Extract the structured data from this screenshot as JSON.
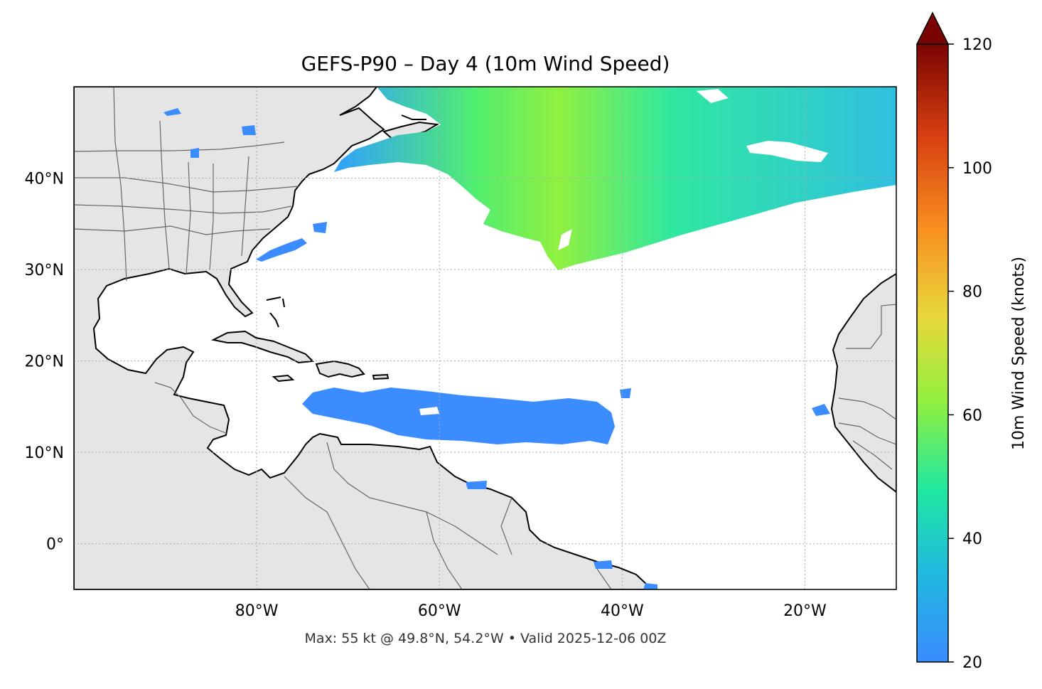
{
  "title": "GEFS-P90 – Day 4 (10m Wind Speed)",
  "footer": "Max: 55 kt @ 49.8°N, 54.2°W • Valid 2025-12-06 00Z",
  "map": {
    "lon_range": [
      -100,
      -10
    ],
    "lat_range": [
      -5,
      50
    ],
    "lon_ticks": [
      {
        "value": -80,
        "label": "80°W"
      },
      {
        "value": -60,
        "label": "60°W"
      },
      {
        "value": -40,
        "label": "40°W"
      },
      {
        "value": -20,
        "label": "20°W"
      }
    ],
    "lat_ticks": [
      {
        "value": 40,
        "label": "40°N"
      },
      {
        "value": 30,
        "label": "30°N"
      },
      {
        "value": 20,
        "label": "20°N"
      },
      {
        "value": 10,
        "label": "10°N"
      },
      {
        "value": 0,
        "label": "0°"
      }
    ],
    "gridlines": true,
    "land_color": "#e5e5e5",
    "ocean_color": "#ffffff",
    "coastline_color": "#000000",
    "border_color": "#666666"
  },
  "colorbar": {
    "label": "10m Wind Speed (knots)",
    "range": [
      20,
      120
    ],
    "extend": "max",
    "ticks": [
      {
        "value": 20,
        "label": "20"
      },
      {
        "value": 40,
        "label": "40"
      },
      {
        "value": 60,
        "label": "60"
      },
      {
        "value": 80,
        "label": "80"
      },
      {
        "value": 100,
        "label": "100"
      },
      {
        "value": 120,
        "label": "120"
      }
    ],
    "colors": [
      "#3a8cff",
      "#20b8e0",
      "#20e8a0",
      "#90f040",
      "#e8d83a",
      "#f89020",
      "#d84010",
      "#7a0403"
    ]
  },
  "max_wind": {
    "value_kt": 55,
    "lat": 49.8,
    "lon": -54.2
  }
}
